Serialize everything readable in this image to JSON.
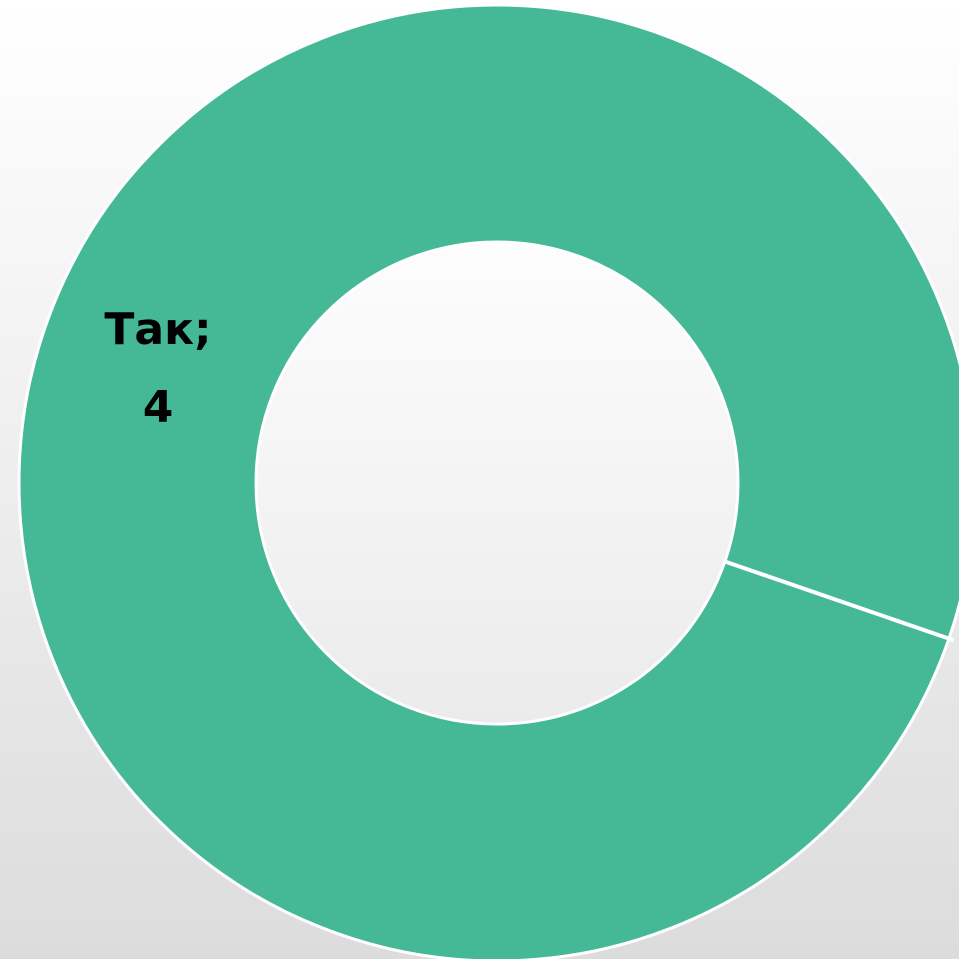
{
  "chart_data": {
    "type": "donut",
    "categories": [
      "Так;"
    ],
    "values": [
      4
    ],
    "color": "#45b995"
  }
}
